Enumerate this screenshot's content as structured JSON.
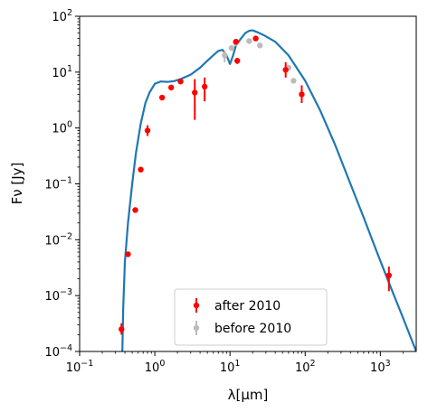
{
  "chart_data": {
    "type": "scatter",
    "xlabel": "λ[μm]",
    "ylabel": "Fν [Jy]",
    "xscale": "log",
    "yscale": "log",
    "xlim": [
      0.1,
      3000
    ],
    "ylim": [
      0.0001,
      100
    ],
    "x_ticks": [
      {
        "value": 0.1,
        "base": "10",
        "exp": "−1"
      },
      {
        "value": 1,
        "base": "10",
        "exp": "0"
      },
      {
        "value": 10,
        "base": "10",
        "exp": "1"
      },
      {
        "value": 100,
        "base": "10",
        "exp": "2"
      },
      {
        "value": 1000,
        "base": "10",
        "exp": "3"
      }
    ],
    "y_ticks": [
      {
        "value": 0.0001,
        "base": "10",
        "exp": "−4"
      },
      {
        "value": 0.001,
        "base": "10",
        "exp": "−3"
      },
      {
        "value": 0.01,
        "base": "10",
        "exp": "−2"
      },
      {
        "value": 0.1,
        "base": "10",
        "exp": "−1"
      },
      {
        "value": 1,
        "base": "10",
        "exp": "0"
      },
      {
        "value": 10,
        "base": "10",
        "exp": "1"
      },
      {
        "value": 100,
        "base": "10",
        "exp": "2"
      }
    ],
    "legend_position": "bottom-center",
    "model": {
      "color": "#1f77b4",
      "points": [
        [
          0.37,
          0.0001
        ],
        [
          0.38,
          0.0006
        ],
        [
          0.4,
          0.004
        ],
        [
          0.44,
          0.02
        ],
        [
          0.5,
          0.1
        ],
        [
          0.56,
          0.35
        ],
        [
          0.65,
          1.2
        ],
        [
          0.75,
          2.8
        ],
        [
          0.85,
          4.3
        ],
        [
          1.0,
          6.2
        ],
        [
          1.2,
          6.8
        ],
        [
          1.5,
          6.7
        ],
        [
          1.8,
          6.9
        ],
        [
          2.2,
          7.5
        ],
        [
          3.0,
          9.0
        ],
        [
          4.0,
          12.0
        ],
        [
          5.0,
          16.0
        ],
        [
          6.0,
          20.0
        ],
        [
          7.0,
          24.0
        ],
        [
          8.0,
          25.0
        ],
        [
          9.0,
          20.0
        ],
        [
          10.0,
          14.0
        ],
        [
          11.0,
          20.0
        ],
        [
          12.0,
          30.0
        ],
        [
          14.0,
          40.0
        ],
        [
          16.0,
          50.0
        ],
        [
          18.0,
          55.0
        ],
        [
          20.0,
          56.0
        ],
        [
          23.0,
          52.0
        ],
        [
          28.0,
          46.0
        ],
        [
          40.0,
          35.0
        ],
        [
          60.0,
          20.0
        ],
        [
          100.0,
          7.0
        ],
        [
          160.0,
          2.0
        ],
        [
          250.0,
          0.5
        ],
        [
          400.0,
          0.1
        ],
        [
          600.0,
          0.025
        ],
        [
          900.0,
          0.006
        ],
        [
          1300.0,
          0.0017
        ],
        [
          2000.0,
          0.0004
        ],
        [
          3000.0,
          0.0001
        ]
      ]
    },
    "series": [
      {
        "name": "after 2010",
        "color": "#ff0000",
        "points": [
          {
            "x": 0.36,
            "y": 0.00025,
            "ylo": 0.0002,
            "yhi": 0.00032
          },
          {
            "x": 0.44,
            "y": 0.0055
          },
          {
            "x": 0.55,
            "y": 0.034
          },
          {
            "x": 0.65,
            "y": 0.18
          },
          {
            "x": 0.8,
            "y": 0.9,
            "ylo": 0.72,
            "yhi": 1.12
          },
          {
            "x": 1.25,
            "y": 3.5
          },
          {
            "x": 1.65,
            "y": 5.3
          },
          {
            "x": 2.2,
            "y": 6.8
          },
          {
            "x": 3.4,
            "y": 4.3,
            "ylo": 1.4,
            "yhi": 7.5
          },
          {
            "x": 4.6,
            "y": 5.5,
            "ylo": 3.0,
            "yhi": 8.0
          },
          {
            "x": 12.0,
            "y": 35.0,
            "ylo": 31.0,
            "yhi": 39.0
          },
          {
            "x": 12.5,
            "y": 16.0,
            "ylo": 14.0,
            "yhi": 18.0
          },
          {
            "x": 22.0,
            "y": 40.0,
            "ylo": 36.0,
            "yhi": 44.0
          },
          {
            "x": 55.0,
            "y": 11.0,
            "ylo": 8.0,
            "yhi": 15.0
          },
          {
            "x": 90.0,
            "y": 4.0,
            "ylo": 2.8,
            "yhi": 5.8
          },
          {
            "x": 1300.0,
            "y": 0.0023,
            "ylo": 0.0012,
            "yhi": 0.0033
          }
        ]
      },
      {
        "name": "before 2010",
        "color": "#bbbbbb",
        "points": [
          {
            "x": 8.5,
            "y": 20.0,
            "ylo": 15.0,
            "yhi": 24.0
          },
          {
            "x": 10.5,
            "y": 27.0
          },
          {
            "x": 12.0,
            "y": 33.0
          },
          {
            "x": 18.0,
            "y": 36.0
          },
          {
            "x": 25.0,
            "y": 30.0
          },
          {
            "x": 60.0,
            "y": 12.0
          },
          {
            "x": 70.0,
            "y": 7.0
          }
        ]
      }
    ]
  }
}
